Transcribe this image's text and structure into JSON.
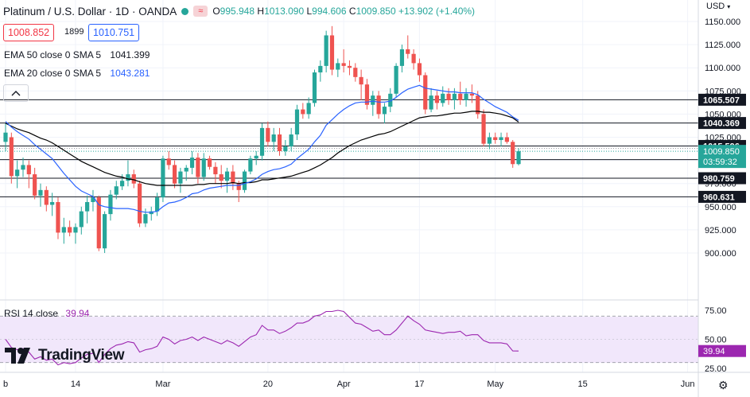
{
  "header": {
    "title": "Platinum / U.S. Dollar · 1D · OANDA",
    "ohlc": {
      "o_label": "O",
      "o": "995.948",
      "h_label": "H",
      "h": "1013.090",
      "l_label": "L",
      "l": "994.606",
      "c_label": "C",
      "c": "1009.850",
      "change": "+13.902 (+1.40%)"
    },
    "status_color": "#26a69a",
    "market_icon": "wave-icon"
  },
  "trade": {
    "sell": "1008.852",
    "spread": "1899",
    "buy": "1010.751"
  },
  "indicators": {
    "ema50_label": "EMA 50 close 0 SMA 5",
    "ema50_value": "1041.399",
    "ema50_color": "#000000",
    "ema20_label": "EMA 20 close 0 SMA 5",
    "ema20_value": "1043.281",
    "ema20_color": "#2962ff"
  },
  "rsi": {
    "label": "RSI 14 close",
    "value": "39.94",
    "color": "#9c27b0"
  },
  "axis": {
    "currency": "USD",
    "price_ticks": [
      "1150.000",
      "1125.000",
      "1100.000",
      "1075.000",
      "1050.000",
      "1025.000",
      "1000.000",
      "975.000",
      "950.000",
      "925.000",
      "900.000"
    ],
    "rsi_ticks": [
      "75.00",
      "50.00",
      "25.00"
    ],
    "time_ticks": [
      "b",
      "14",
      "Mar",
      "20",
      "Apr",
      "17",
      "May",
      "15",
      "Jun"
    ]
  },
  "brand": {
    "name": "TradingView",
    "logo_icon": "tradingview-logo"
  },
  "chart_data": {
    "type": "candlestick",
    "symbol": "Platinum / U.S. Dollar",
    "interval": "1D",
    "source": "OANDA",
    "ylim": [
      885,
      1160
    ],
    "rsi_ylim": [
      20,
      80
    ],
    "colors": {
      "up": "#26a69a",
      "down": "#ef5350"
    },
    "price_lines": [
      {
        "value": 1065.507,
        "label": "1065.507"
      },
      {
        "value": 1040.369,
        "label": "1040.369"
      },
      {
        "value": 1015.596,
        "label": "1015.596"
      },
      {
        "value": 1000.887,
        "label": "1000.887"
      },
      {
        "value": 980.759,
        "label": "980.759"
      },
      {
        "value": 960.631,
        "label": "960.631"
      }
    ],
    "last_price": {
      "value": 1009.85,
      "label": "1009.850",
      "countdown": "03:59:32"
    },
    "candles": [
      [
        1020,
        1040,
        1010,
        1030
      ],
      [
        1025,
        1030,
        975,
        983
      ],
      [
        983,
        1000,
        970,
        990
      ],
      [
        990,
        1003,
        982,
        995
      ],
      [
        995,
        1000,
        970,
        985
      ],
      [
        985,
        992,
        958,
        962
      ],
      [
        962,
        975,
        950,
        968
      ],
      [
        968,
        972,
        945,
        952
      ],
      [
        952,
        965,
        940,
        955
      ],
      [
        955,
        960,
        915,
        922
      ],
      [
        922,
        938,
        910,
        928
      ],
      [
        928,
        935,
        918,
        922
      ],
      [
        922,
        932,
        910,
        928
      ],
      [
        928,
        950,
        920,
        945
      ],
      [
        945,
        962,
        932,
        955
      ],
      [
        955,
        968,
        945,
        960
      ],
      [
        960,
        962,
        902,
        905
      ],
      [
        905,
        945,
        900,
        942
      ],
      [
        942,
        968,
        935,
        963
      ],
      [
        963,
        978,
        958,
        972
      ],
      [
        972,
        985,
        968,
        978
      ],
      [
        978,
        1000,
        972,
        985
      ],
      [
        985,
        990,
        970,
        975
      ],
      [
        975,
        978,
        928,
        932
      ],
      [
        932,
        948,
        928,
        942
      ],
      [
        942,
        950,
        935,
        945
      ],
      [
        945,
        965,
        940,
        960
      ],
      [
        960,
        1005,
        955,
        1002
      ],
      [
        1002,
        1010,
        990,
        995
      ],
      [
        995,
        1000,
        970,
        975
      ],
      [
        975,
        992,
        965,
        988
      ],
      [
        988,
        995,
        978,
        992
      ],
      [
        992,
        1010,
        985,
        1003
      ],
      [
        1003,
        1008,
        975,
        982
      ],
      [
        982,
        1008,
        978,
        1002
      ],
      [
        1002,
        1005,
        990,
        993
      ],
      [
        993,
        998,
        975,
        985
      ],
      [
        985,
        995,
        970,
        978
      ],
      [
        978,
        992,
        965,
        988
      ],
      [
        988,
        995,
        968,
        975
      ],
      [
        975,
        978,
        955,
        968
      ],
      [
        968,
        990,
        965,
        988
      ],
      [
        988,
        1005,
        985,
        1002
      ],
      [
        1002,
        1010,
        995,
        1005
      ],
      [
        1005,
        1040,
        1000,
        1035
      ],
      [
        1035,
        1042,
        1015,
        1020
      ],
      [
        1020,
        1035,
        1010,
        1028
      ],
      [
        1028,
        1035,
        1005,
        1010
      ],
      [
        1010,
        1022,
        1005,
        1015
      ],
      [
        1015,
        1035,
        1010,
        1028
      ],
      [
        1028,
        1060,
        1022,
        1055
      ],
      [
        1055,
        1062,
        1045,
        1050
      ],
      [
        1050,
        1068,
        1045,
        1062
      ],
      [
        1062,
        1098,
        1058,
        1095
      ],
      [
        1095,
        1108,
        1085,
        1102
      ],
      [
        1102,
        1140,
        1095,
        1135
      ],
      [
        1135,
        1145,
        1092,
        1098
      ],
      [
        1098,
        1110,
        1090,
        1105
      ],
      [
        1105,
        1120,
        1095,
        1102
      ],
      [
        1102,
        1108,
        1092,
        1100
      ],
      [
        1100,
        1105,
        1085,
        1090
      ],
      [
        1090,
        1098,
        1065,
        1082
      ],
      [
        1082,
        1088,
        1055,
        1060
      ],
      [
        1060,
        1075,
        1048,
        1070
      ],
      [
        1070,
        1075,
        1045,
        1050
      ],
      [
        1050,
        1062,
        1040,
        1058
      ],
      [
        1058,
        1078,
        1052,
        1072
      ],
      [
        1072,
        1105,
        1068,
        1102
      ],
      [
        1102,
        1125,
        1095,
        1120
      ],
      [
        1120,
        1135,
        1110,
        1115
      ],
      [
        1115,
        1120,
        1098,
        1105
      ],
      [
        1105,
        1110,
        1085,
        1092
      ],
      [
        1092,
        1095,
        1050,
        1055
      ],
      [
        1055,
        1078,
        1052,
        1070
      ],
      [
        1070,
        1075,
        1055,
        1062
      ],
      [
        1062,
        1080,
        1058,
        1072
      ],
      [
        1072,
        1078,
        1060,
        1065
      ],
      [
        1065,
        1078,
        1055,
        1072
      ],
      [
        1072,
        1085,
        1060,
        1065
      ],
      [
        1065,
        1078,
        1058,
        1072
      ],
      [
        1072,
        1082,
        1062,
        1070
      ],
      [
        1070,
        1075,
        1045,
        1050
      ],
      [
        1050,
        1055,
        1015,
        1018
      ],
      [
        1018,
        1030,
        1012,
        1025
      ],
      [
        1025,
        1030,
        1018,
        1022
      ],
      [
        1022,
        1030,
        1015,
        1025
      ],
      [
        1025,
        1030,
        1018,
        1020
      ],
      [
        1020,
        1022,
        992,
        996
      ],
      [
        996,
        1013,
        994.6,
        1009.85
      ]
    ],
    "ema20": [
      1042,
      1036,
      1031,
      1027,
      1023,
      1017,
      1012,
      1007,
      1002,
      994,
      986,
      979,
      972,
      967,
      964,
      961,
      952,
      950,
      949,
      948,
      948,
      948,
      947,
      945,
      944,
      944,
      945,
      950,
      954,
      955,
      957,
      960,
      964,
      965,
      968,
      970,
      971,
      972,
      973,
      973,
      973,
      975,
      977,
      980,
      985,
      988,
      990,
      991,
      993,
      996,
      1002,
      1007,
      1012,
      1020,
      1027,
      1038,
      1044,
      1050,
      1055,
      1059,
      1062,
      1063,
      1063,
      1064,
      1063,
      1063,
      1064,
      1068,
      1073,
      1077,
      1079,
      1081,
      1078,
      1077,
      1076,
      1075,
      1074,
      1074,
      1073,
      1073,
      1073,
      1071,
      1066,
      1062,
      1058,
      1055,
      1052,
      1047,
      1043.3
    ],
    "ema50": [
      1040,
      1037,
      1034,
      1032,
      1030,
      1027,
      1024,
      1022,
      1019,
      1015,
      1011,
      1007,
      1003,
      999,
      996,
      993,
      990,
      987,
      985,
      983,
      982,
      980,
      979,
      977,
      975,
      974,
      973,
      973,
      973,
      973,
      973,
      973,
      973,
      974,
      974,
      975,
      975,
      975,
      975,
      976,
      975,
      976,
      976,
      977,
      979,
      979,
      980,
      981,
      982,
      983,
      985,
      987,
      989,
      992,
      995,
      999,
      1003,
      1008,
      1012,
      1016,
      1019,
      1022,
      1024,
      1026,
      1028,
      1029,
      1031,
      1034,
      1037,
      1040,
      1043,
      1046,
      1047,
      1048,
      1048,
      1049,
      1050,
      1051,
      1051,
      1052,
      1053,
      1053,
      1052,
      1052,
      1051,
      1050,
      1048,
      1046,
      1041.4
    ],
    "rsi_values": [
      50,
      43,
      41,
      42,
      39,
      33,
      35,
      32,
      33,
      28,
      30,
      29,
      30,
      34,
      37,
      38,
      30,
      37,
      42,
      45,
      46,
      48,
      47,
      39,
      41,
      42,
      44,
      52,
      50,
      46,
      49,
      50,
      52,
      49,
      52,
      50,
      48,
      46,
      49,
      47,
      44,
      48,
      52,
      54,
      62,
      58,
      58,
      55,
      57,
      60,
      64,
      64,
      66,
      70,
      71,
      74,
      74,
      75,
      74,
      69,
      64,
      63,
      60,
      57,
      58,
      54,
      54,
      58,
      64,
      70,
      66,
      63,
      58,
      57,
      56,
      55,
      56,
      56,
      57,
      53,
      54,
      54,
      49,
      47,
      47,
      47,
      46,
      40,
      39.94
    ],
    "time_tick_index": {
      "b": 0,
      "14": 12,
      "Mar": 27,
      "20": 45,
      "Apr": 58,
      "17": 71,
      "May": 84,
      "15": 99,
      "Jun": 117
    }
  }
}
